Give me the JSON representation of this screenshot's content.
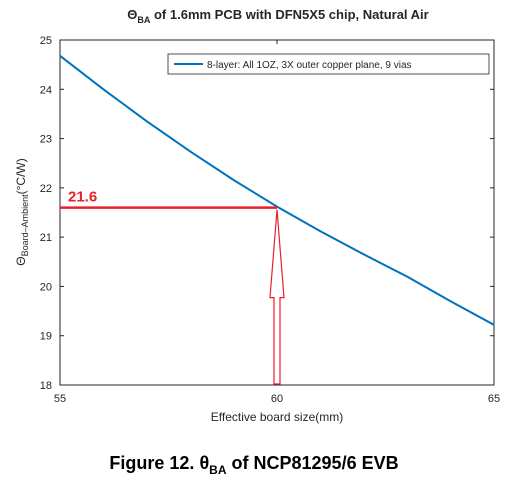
{
  "chart_data": {
    "type": "line",
    "title": {
      "theta": "Θ",
      "sub": "BA",
      "rest": " of 1.6mm PCB with DFN5X5 chip, Natural Air"
    },
    "xlabel": "Effective board size(mm)",
    "ylabel": {
      "theta": "Θ",
      "sub": "Board–Ambient",
      "unit": "(°C/W)"
    },
    "xlim": [
      55,
      65
    ],
    "ylim": [
      18,
      25
    ],
    "xticks": [
      55,
      60,
      65
    ],
    "yticks": [
      18,
      19,
      20,
      21,
      22,
      23,
      24,
      25
    ],
    "grid": false,
    "legend_position": "top-right",
    "series": [
      {
        "name": "8-layer: All 1OZ, 3X outer copper plane, 9 vias",
        "color": "#0072BD",
        "x": [
          55,
          56,
          57,
          58,
          59,
          60,
          61,
          62,
          63,
          64,
          65
        ],
        "y": [
          24.68,
          24.0,
          23.35,
          22.74,
          22.16,
          21.62,
          21.12,
          20.65,
          20.2,
          19.7,
          19.22
        ]
      }
    ],
    "annotation": {
      "label": "21.6",
      "x": 60,
      "y": 21.6,
      "color": "#E8202A"
    }
  },
  "caption": {
    "prefix": "Figure 12. ",
    "theta": "θ",
    "sub": "BA",
    "suffix": " of NCP81295/6 EVB"
  }
}
